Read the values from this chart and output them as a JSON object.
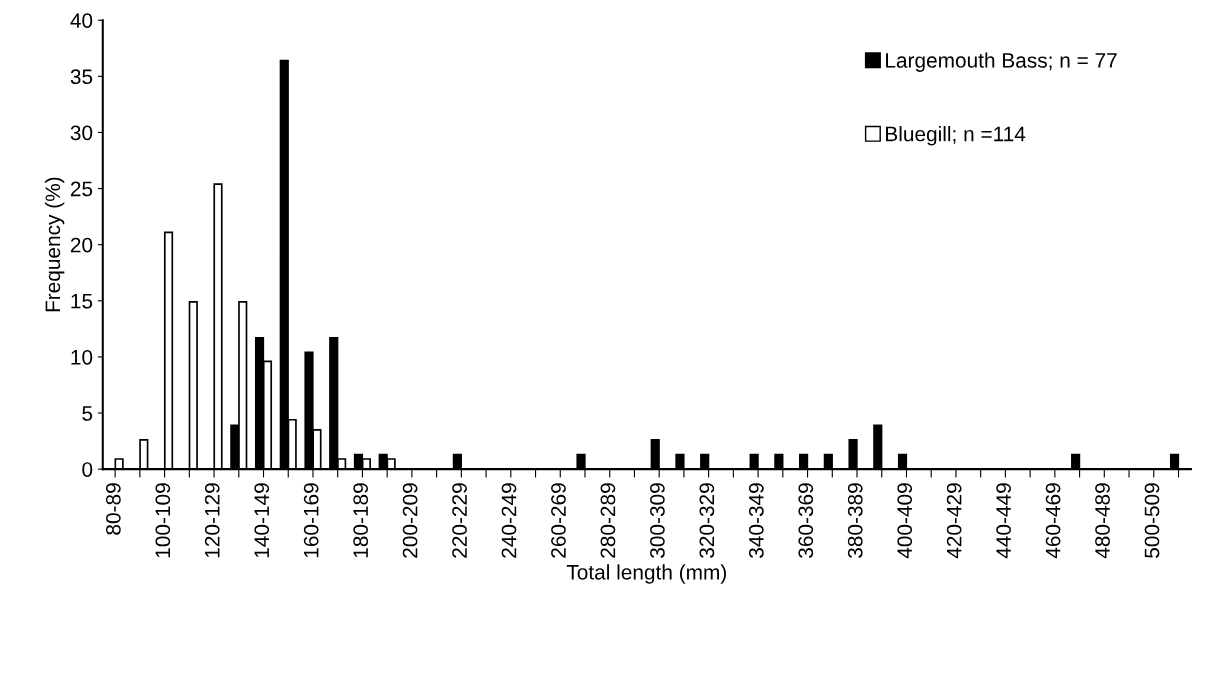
{
  "chart_data": {
    "type": "bar",
    "xlabel": "Total length (mm)",
    "ylabel": "Frequency (%)",
    "categories": [
      "80-89",
      null,
      "100-109",
      null,
      "120-129",
      null,
      "140-149",
      null,
      "160-169",
      null,
      "180-189",
      null,
      "200-209",
      null,
      "220-229",
      null,
      "240-249",
      null,
      "260-269",
      null,
      "280-289",
      null,
      "300-309",
      null,
      "320-329",
      null,
      "340-349",
      null,
      "360-369",
      null,
      "380-389",
      null,
      "400-409",
      null,
      "420-429",
      null,
      "440-449",
      null,
      "460-469",
      null,
      "480-489",
      null,
      "500-509",
      null
    ],
    "series": [
      {
        "name": "Largemouth Bass; n = 77",
        "color": "#000000",
        "values": [
          null,
          null,
          null,
          null,
          null,
          3.9,
          11.7,
          36.4,
          10.4,
          11.7,
          1.3,
          1.3,
          null,
          null,
          1.3,
          null,
          null,
          null,
          null,
          1.3,
          null,
          null,
          2.6,
          1.3,
          1.3,
          null,
          1.3,
          1.3,
          1.3,
          1.3,
          2.6,
          3.9,
          1.3,
          null,
          null,
          null,
          null,
          null,
          null,
          1.3,
          null,
          null,
          null,
          1.3
        ]
      },
      {
        "name": "Bluegill; n =114",
        "color": "#ffffff",
        "values": [
          0.9,
          2.6,
          21.1,
          14.9,
          25.4,
          14.9,
          9.6,
          4.4,
          3.5,
          0.9,
          0.9,
          0.9,
          null,
          null,
          null,
          null,
          null,
          null,
          null,
          null,
          null,
          null,
          null,
          null,
          null,
          null,
          null,
          null,
          null,
          null,
          null,
          null,
          null,
          null,
          null,
          null,
          null,
          null,
          null,
          null,
          null,
          null,
          null,
          null
        ]
      }
    ],
    "ylim": [
      0,
      40
    ],
    "yticks": [
      0,
      5,
      10,
      15,
      20,
      25,
      30,
      35,
      40
    ],
    "grid": false,
    "legend": "top right"
  }
}
